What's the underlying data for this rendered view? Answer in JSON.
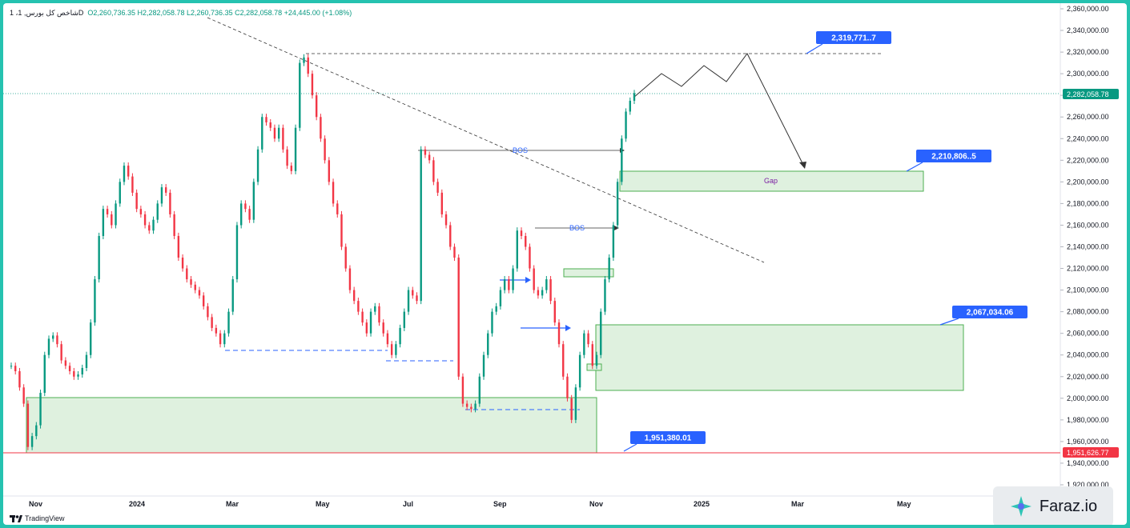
{
  "header": {
    "symbol": "1 ،شاخص كل بورس, 1D",
    "ohlc": "O2,260,736.35  H2,282,058.78  L2,260,736.35  C2,282,058.78  +24,445.00 (+1.08%)"
  },
  "price_axis": {
    "ticks": [
      "2,360,000.00",
      "2,340,000.00",
      "2,320,000.00",
      "2,300,000.00",
      "2,280,000.00",
      "2,260,000.00",
      "2,240,000.00",
      "2,220,000.00",
      "2,200,000.00",
      "2,180,000.00",
      "2,160,000.00",
      "2,140,000.00",
      "2,120,000.00",
      "2,100,000.00",
      "2,080,000.00",
      "2,060,000.00",
      "2,040,000.00",
      "2,020,000.00",
      "2,000,000.00",
      "1,980,000.00",
      "1,960,000.00",
      "1,940,000.00",
      "1,920,000.00"
    ],
    "current_price_label": "2,282,058.78",
    "support_price_label": "1,951,626.77"
  },
  "time_axis": {
    "labels": [
      "Nov",
      "2024",
      "Mar",
      "May",
      "Jul",
      "Sep",
      "Nov",
      "2025",
      "Mar",
      "May"
    ]
  },
  "annotations": {
    "target_top": "2,319,771..7",
    "gap_top": "2,210,806..5",
    "zone_top": "2,067,034.06",
    "support_low": "1,951,380.01",
    "gap_label": "Gap",
    "bos_1": "BOS",
    "bos_2": "BOS"
  },
  "branding": {
    "tradingview": "TradingView",
    "watermark": "Faraz.io"
  },
  "colors": {
    "up": "#089981",
    "down": "#f23645",
    "zone_fill": "#dff1df",
    "zone_stroke": "#4caf50",
    "label_blue": "#2962ff",
    "support_line": "#f23645"
  }
}
